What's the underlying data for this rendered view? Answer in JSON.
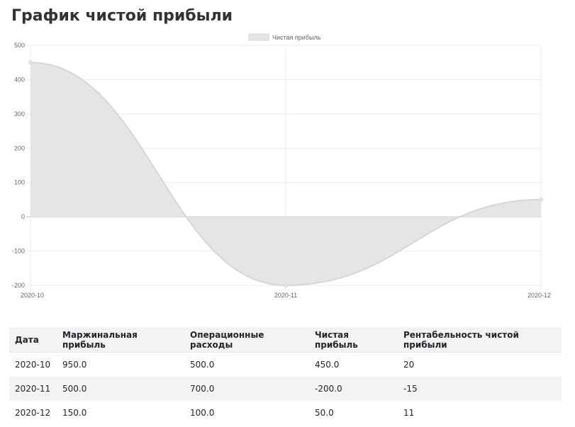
{
  "page": {
    "title": "График чистой прибыли"
  },
  "chart_data": {
    "type": "area",
    "categories": [
      "2020-10",
      "2020-11",
      "2020-12"
    ],
    "series": [
      {
        "name": "Чистая прибыль",
        "values": [
          450,
          -200,
          50
        ]
      }
    ],
    "yticks": [
      500,
      400,
      300,
      200,
      100,
      0,
      -100,
      -200
    ],
    "ylim": [
      -200,
      500
    ],
    "legend_position": "top",
    "grid": true,
    "colors": {
      "fill": "#e5e5e5",
      "line": "#d6d6d6",
      "grid": "#ebebeb",
      "zero_line": "#bdbdbd",
      "tick_text": "#666666"
    }
  },
  "table": {
    "headers": [
      "Дата",
      "Маржинальная прибыль",
      "Операционные расходы",
      "Чистая прибыль",
      "Рентабельность чистой прибыли"
    ],
    "rows": [
      [
        "2020-10",
        "950.0",
        "500.0",
        "450.0",
        "20"
      ],
      [
        "2020-11",
        "500.0",
        "700.0",
        "-200.0",
        "-15"
      ],
      [
        "2020-12",
        "150.0",
        "100.0",
        "50.0",
        "11"
      ]
    ]
  }
}
